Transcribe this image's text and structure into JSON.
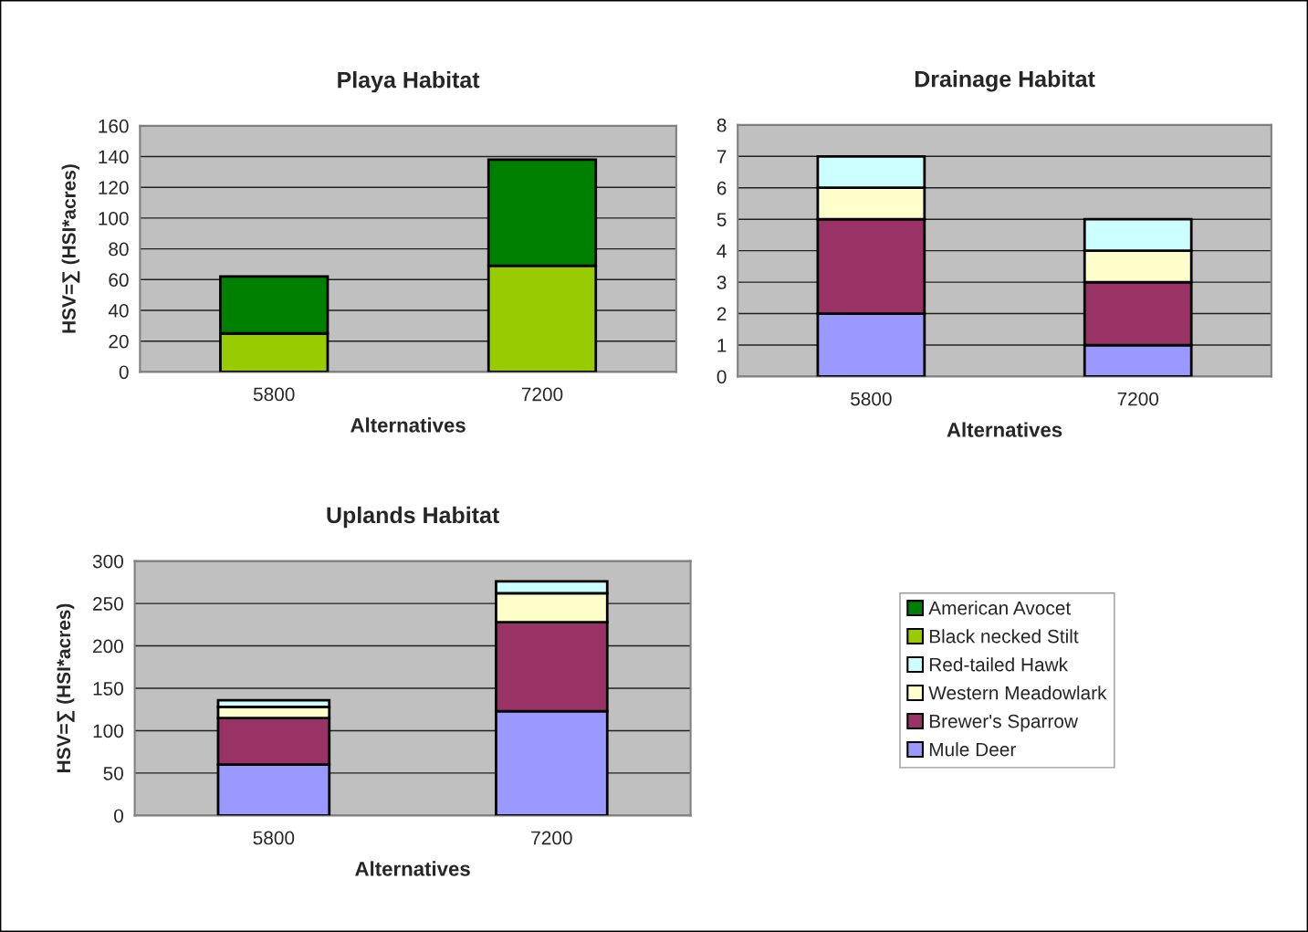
{
  "chart_data": [
    {
      "type": "bar",
      "title": "Playa Habitat",
      "xlabel": "Alternatives",
      "ylabel": "HSV=∑ (HSI*acres)",
      "categories": [
        "5800",
        "7200"
      ],
      "stacked": true,
      "ylim": [
        0,
        160
      ],
      "yticks": [
        0,
        20,
        40,
        60,
        80,
        100,
        120,
        140,
        160
      ],
      "grid": "y",
      "legend": "bottom right",
      "series": [
        {
          "name": "Black necked Stilt",
          "color": "#99cc00",
          "values": [
            25,
            69
          ]
        },
        {
          "name": "American Avocet",
          "color": "#008000",
          "values": [
            37,
            69
          ]
        }
      ]
    },
    {
      "type": "bar",
      "title": "Drainage Habitat",
      "xlabel": "Alternatives",
      "categories": [
        "5800",
        "7200"
      ],
      "stacked": true,
      "ylim": [
        0,
        8
      ],
      "yticks": [
        0,
        1,
        2,
        3,
        4,
        5,
        6,
        7,
        8
      ],
      "grid": "y",
      "legend": "bottom",
      "series": [
        {
          "name": "Mule Deer",
          "color": "#9999ff",
          "values": [
            2,
            1
          ]
        },
        {
          "name": "Brewer's Sparrow",
          "color": "#993366",
          "values": [
            3,
            2
          ]
        },
        {
          "name": "Western Meadowlark",
          "color": "#ffffcc",
          "values": [
            1,
            1
          ]
        },
        {
          "name": "Red-tailed Hawk",
          "color": "#ccffff",
          "values": [
            1,
            1
          ]
        }
      ]
    },
    {
      "type": "bar",
      "title": "Uplands Habitat",
      "xlabel": "Alternatives",
      "ylabel": "HSV=∑ (HSI*acres)",
      "categories": [
        "5800",
        "7200"
      ],
      "stacked": true,
      "ylim": [
        0,
        300
      ],
      "yticks": [
        0,
        50,
        100,
        150,
        200,
        250,
        300
      ],
      "grid": "y",
      "legend": "right",
      "series": [
        {
          "name": "Mule Deer",
          "color": "#9999ff",
          "values": [
            60,
            123
          ]
        },
        {
          "name": "Brewer's Sparrow",
          "color": "#993366",
          "values": [
            55,
            105
          ]
        },
        {
          "name": "Western Meadowlark",
          "color": "#ffffcc",
          "values": [
            13,
            34
          ]
        },
        {
          "name": "Red-tailed Hawk",
          "color": "#ccffff",
          "values": [
            8,
            14
          ]
        }
      ]
    }
  ]
}
